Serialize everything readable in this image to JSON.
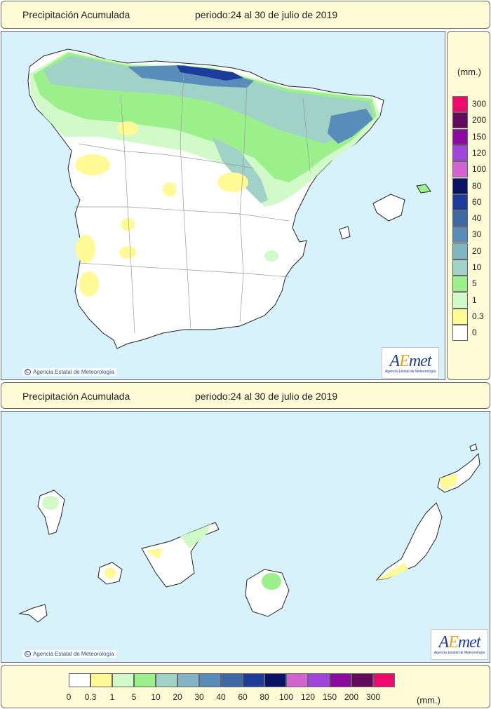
{
  "header_top": {
    "title": "Precipitación Acumulada",
    "period": "periodo:24 al 30 de julio de 2019"
  },
  "header_mid": {
    "title": "Precipitación Acumulada",
    "period": "periodo:24 al 30 de julio de 2019"
  },
  "credit": "Agencia Estatal de Meteorología",
  "credit_symbol": "C",
  "logo": {
    "a": "A",
    "e": "E",
    "rest": "met",
    "subtitle": "Agencia Estatal de Meteorología"
  },
  "legend": {
    "unit": "(mm.)",
    "classes": [
      {
        "label": "0",
        "color": "#ffffff"
      },
      {
        "label": "0.3",
        "color": "#fffa96"
      },
      {
        "label": "1",
        "color": "#d2fac8"
      },
      {
        "label": "5",
        "color": "#9bf08c"
      },
      {
        "label": "10",
        "color": "#a0d2c8"
      },
      {
        "label": "20",
        "color": "#82b4c3"
      },
      {
        "label": "30",
        "color": "#5a8cb9"
      },
      {
        "label": "40",
        "color": "#3c69a5"
      },
      {
        "label": "60",
        "color": "#1e3c9b"
      },
      {
        "label": "80",
        "color": "#0a1464"
      },
      {
        "label": "100",
        "color": "#d264d2"
      },
      {
        "label": "120",
        "color": "#a046dc"
      },
      {
        "label": "150",
        "color": "#8c0aa0"
      },
      {
        "label": "200",
        "color": "#640a5a"
      },
      {
        "label": "300",
        "color": "#f00a6e"
      }
    ]
  },
  "colors": {
    "sea": "#d7f2fa",
    "panel": "#fffbd6"
  }
}
